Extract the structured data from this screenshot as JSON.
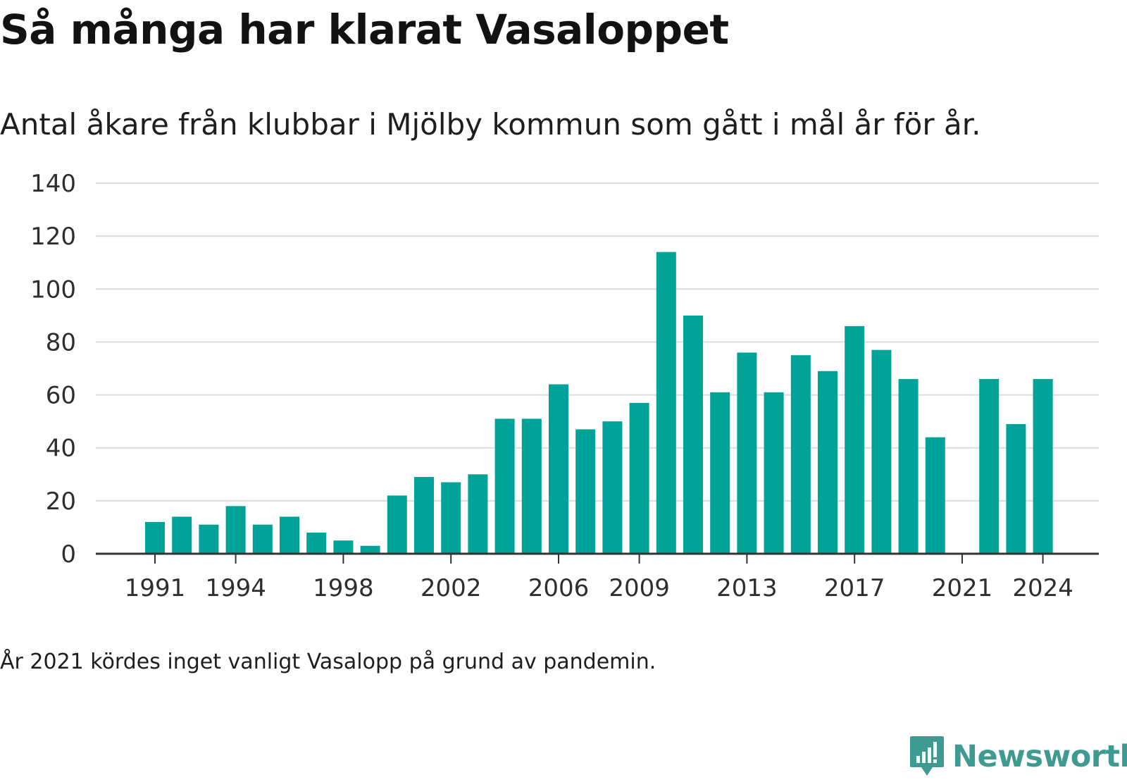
{
  "title": "Så många har klarat Vasaloppet",
  "subtitle": "Antal åkare från klubbar i Mjölby kommun som gått i mål år för år.",
  "note": "År 2021 kördes inget vanligt Vasalopp på grund av pandemin.",
  "brand": {
    "name": "Newsworthy",
    "icon": "newsworthy-logo-icon"
  },
  "colors": {
    "bar": "#00a398",
    "grid": "#dcdcdc",
    "axis": "#333333",
    "brand": "#3f9b91"
  },
  "chart_data": {
    "type": "bar",
    "x": [
      1991,
      1992,
      1993,
      1994,
      1995,
      1996,
      1997,
      1998,
      1999,
      2000,
      2001,
      2002,
      2003,
      2004,
      2005,
      2006,
      2007,
      2008,
      2009,
      2010,
      2011,
      2012,
      2013,
      2014,
      2015,
      2016,
      2017,
      2018,
      2019,
      2020,
      2021,
      2022,
      2023,
      2024
    ],
    "values": [
      12,
      14,
      11,
      18,
      11,
      14,
      8,
      5,
      3,
      22,
      29,
      27,
      30,
      51,
      51,
      64,
      47,
      50,
      57,
      114,
      90,
      61,
      76,
      61,
      75,
      69,
      86,
      77,
      66,
      44,
      0,
      66,
      49,
      66
    ],
    "x_ticks": [
      1991,
      1994,
      1998,
      2002,
      2006,
      2009,
      2013,
      2017,
      2021,
      2024
    ],
    "y_ticks": [
      0,
      20,
      40,
      60,
      80,
      100,
      120,
      140
    ],
    "ylim": [
      0,
      140
    ],
    "grid": true,
    "legend": "none"
  }
}
